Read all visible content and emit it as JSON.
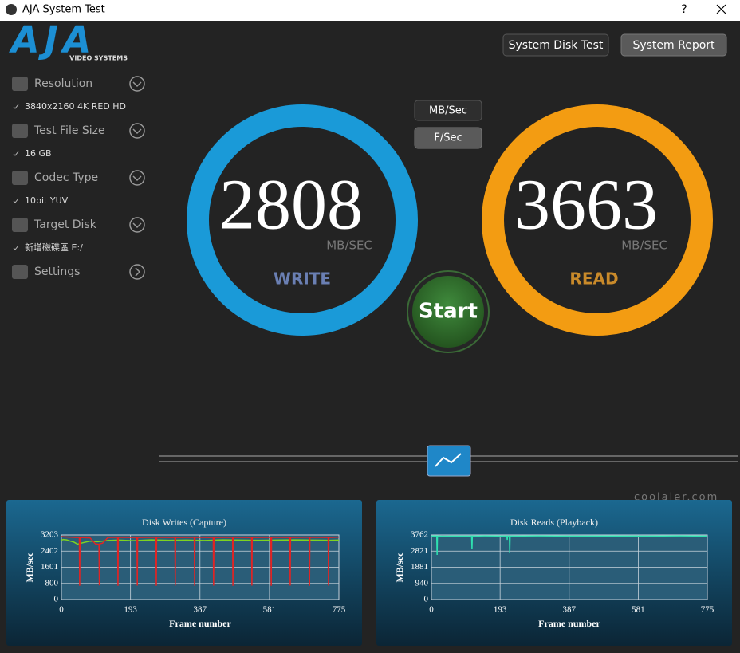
{
  "window": {
    "title": "AJA System Test",
    "help": "?"
  },
  "logo": {
    "name": "AJA",
    "tagline": "VIDEO SYSTEMS"
  },
  "buttons": [
    "System Disk Test",
    "System Report"
  ],
  "sidebar": [
    {
      "label": "Resolution",
      "value": "3840x2160 4K RED HD"
    },
    {
      "label": "Test File Size",
      "value": "16 GB"
    },
    {
      "label": "Codec Type",
      "value": "10bit YUV"
    },
    {
      "label": "Target Disk",
      "value": "新增磁碟區 E:/"
    },
    {
      "label": "Settings"
    }
  ],
  "units": [
    "MB/Sec",
    "F/Sec"
  ],
  "write": {
    "value": 2808,
    "unit": "MB/SEC",
    "label": "WRITE"
  },
  "read": {
    "value": 3663,
    "unit": "MB/SEC",
    "label": "READ"
  },
  "start": "Start",
  "watermark": "coolaler.com",
  "chart_data": [
    {
      "type": "line",
      "title": "Disk Writes (Capture)",
      "x_label": "Frame number",
      "y_label": "MB/sec",
      "xlim": [
        0,
        775
      ],
      "xticks": [
        0,
        193,
        387,
        581,
        775
      ],
      "ylim": [
        0,
        3203
      ],
      "yticks": [
        0,
        800,
        1601,
        2402,
        3203
      ],
      "grid": true,
      "series": [
        {
          "color": "#7ed321",
          "x": [
            0,
            5,
            15,
            25,
            35,
            45,
            60,
            80,
            100,
            130,
            160,
            200,
            250,
            300,
            350,
            400,
            450,
            500,
            550,
            600,
            650,
            700,
            750,
            775
          ],
          "values": [
            2950,
            2980,
            2960,
            2900,
            2850,
            2750,
            2820,
            2900,
            2870,
            2930,
            2950,
            2920,
            2960,
            2940,
            2950,
            2930,
            2960,
            2950,
            2940,
            2950,
            2960,
            2950,
            2940,
            2950
          ]
        },
        {
          "color": "#e02424",
          "x": [
            0,
            20,
            40,
            50,
            51,
            52,
            80,
            95,
            105,
            106,
            107,
            115,
            130,
            157,
            158,
            159,
            211,
            212,
            213,
            264,
            265,
            266,
            317,
            318,
            319,
            371,
            372,
            373,
            424,
            425,
            426,
            478,
            479,
            480,
            531,
            532,
            533,
            585,
            586,
            587,
            638,
            639,
            640,
            692,
            693,
            694,
            745,
            746,
            747,
            775
          ],
          "values": [
            3120,
            3100,
            3080,
            3080,
            680,
            3080,
            3060,
            2760,
            2740,
            700,
            2760,
            2800,
            3080,
            3090,
            680,
            3090,
            3080,
            690,
            3080,
            3090,
            680,
            3090,
            3080,
            690,
            3080,
            3090,
            680,
            3090,
            3080,
            690,
            3080,
            3090,
            680,
            3090,
            3080,
            690,
            3080,
            3090,
            680,
            3090,
            3080,
            690,
            3080,
            3090,
            680,
            3090,
            3080,
            690,
            3080,
            3100
          ]
        }
      ]
    },
    {
      "type": "line",
      "title": "Disk Reads (Playback)",
      "x_label": "Frame number",
      "y_label": "MB/sec",
      "xlim": [
        0,
        775
      ],
      "xticks": [
        0,
        193,
        387,
        581,
        775
      ],
      "ylim": [
        0,
        3762
      ],
      "yticks": [
        0,
        940,
        1881,
        2821,
        3762
      ],
      "grid": true,
      "series": [
        {
          "color": "#2fe0b0",
          "x": [
            0,
            10,
            15,
            16,
            17,
            30,
            60,
            113,
            114,
            115,
            150,
            212,
            213,
            214,
            219,
            220,
            221,
            300,
            400,
            500,
            600,
            700,
            775
          ],
          "values": [
            3700,
            3710,
            3700,
            2600,
            3700,
            3690,
            3700,
            3700,
            2926,
            3700,
            3710,
            3700,
            3483,
            3700,
            3700,
            2694,
            3700,
            3710,
            3700,
            3705,
            3700,
            3710,
            3700
          ]
        }
      ]
    }
  ]
}
